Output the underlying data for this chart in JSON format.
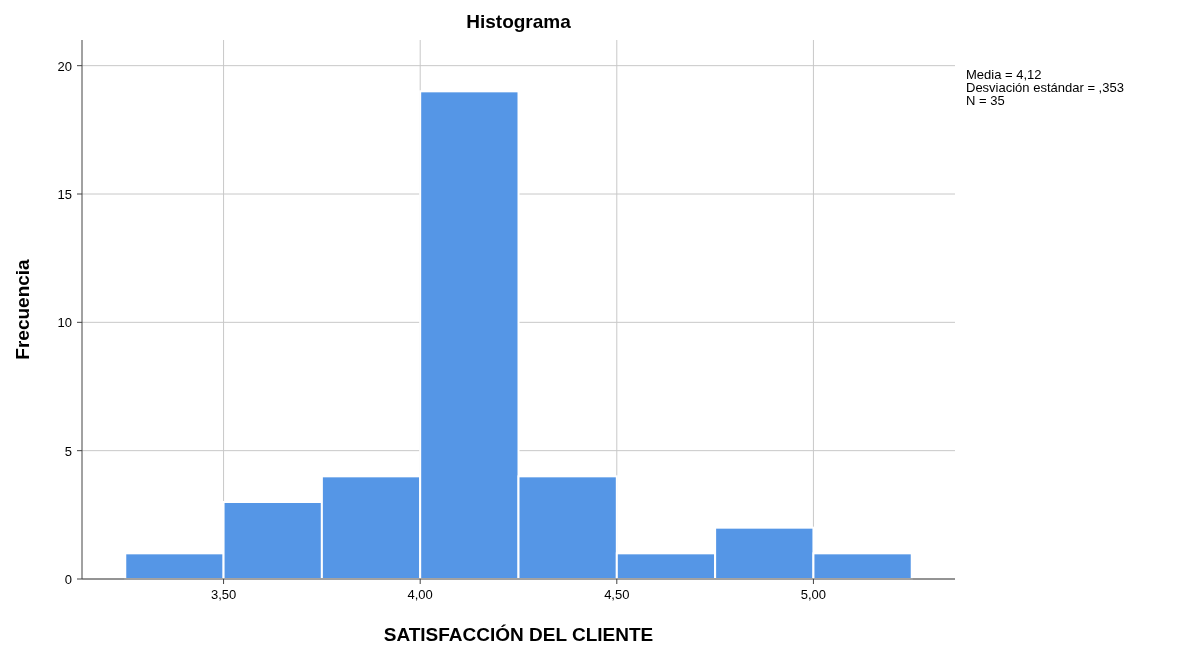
{
  "chart_data": {
    "type": "histogram",
    "title": "Histograma",
    "xlabel": "SATISFACCIÓN DEL CLIENTE",
    "ylabel": "Frecuencia",
    "bins": [
      3.25,
      3.5,
      3.75,
      4.0,
      4.25,
      4.5,
      4.75,
      5.0,
      5.25
    ],
    "values": [
      1,
      3,
      4,
      19,
      4,
      1,
      2,
      1
    ],
    "color": "#5596e6",
    "xlim": [
      3.14,
      5.36
    ],
    "xticks": [
      {
        "value": 3.5,
        "label": "3,50"
      },
      {
        "value": 4.0,
        "label": "4,00"
      },
      {
        "value": 4.5,
        "label": "4,50"
      },
      {
        "value": 5.0,
        "label": "5,00"
      }
    ],
    "ylim": [
      0,
      21
    ],
    "yticks": [
      0,
      5,
      10,
      15,
      20
    ],
    "grid": true,
    "annotations": [
      "Media = 4,12",
      "Desviación estándar = ,353",
      "N = 35"
    ]
  }
}
